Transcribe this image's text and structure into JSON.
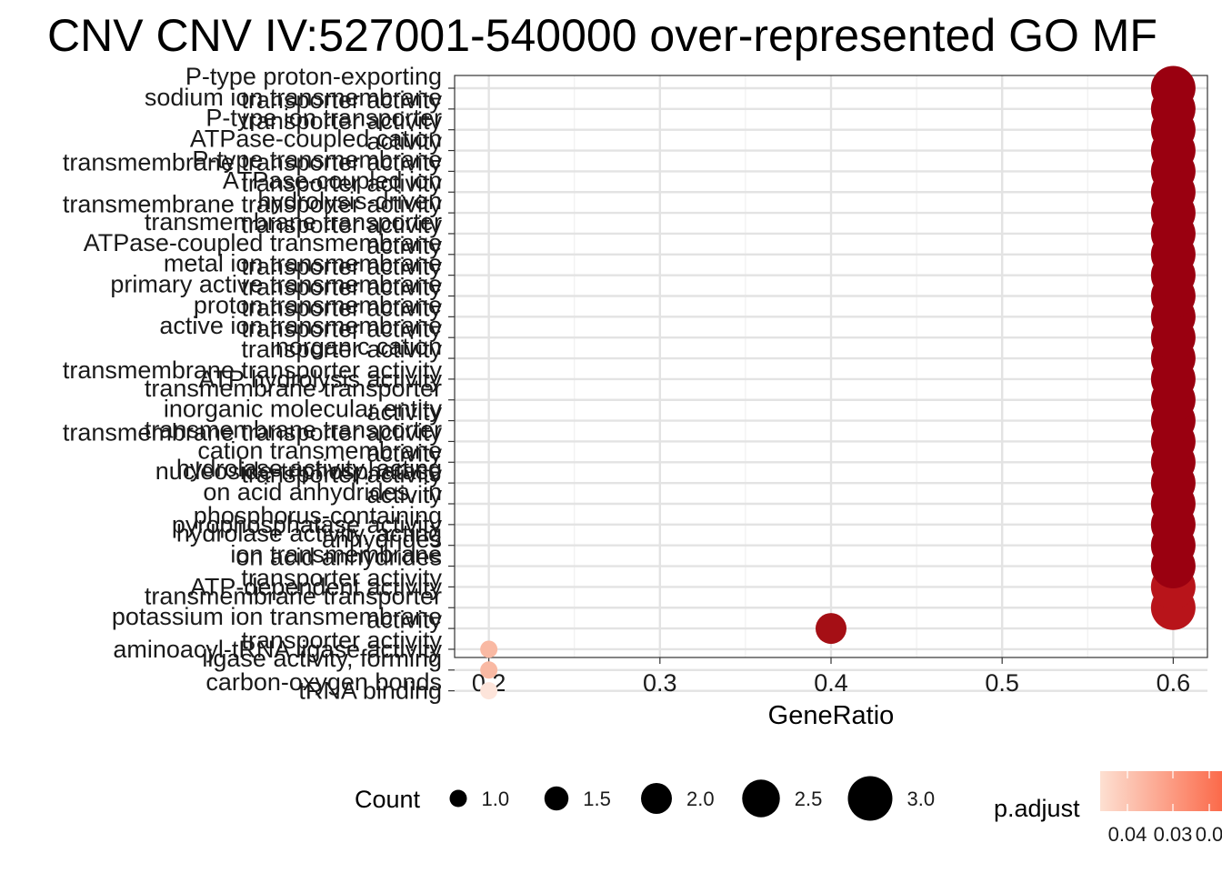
{
  "chart_data": {
    "type": "scatter",
    "title": "CNV CNV IV:527001-540000 over-represented GO MF",
    "xlabel": "GeneRatio",
    "ylabel": "",
    "xlim": [
      0.18,
      0.62
    ],
    "x_ticks": [
      "0.2",
      "0.3",
      "0.4",
      "0.5",
      "0.6"
    ],
    "grid": true,
    "categories": [
      {
        "label": [
          "P-type proton-exporting",
          "transporter activity"
        ],
        "x": 0.6,
        "count": 3,
        "p_adjust": 0.0015
      },
      {
        "label": [
          "sodium ion transmembrane",
          "transporter activity"
        ],
        "x": 0.6,
        "count": 3,
        "p_adjust": 0.0015
      },
      {
        "label": [
          "P-type ion transporter",
          "activity"
        ],
        "x": 0.6,
        "count": 3,
        "p_adjust": 0.0015
      },
      {
        "label": [
          "ATPase-coupled cation",
          "transmembrane transporter activity"
        ],
        "x": 0.6,
        "count": 3,
        "p_adjust": 0.0015
      },
      {
        "label": [
          "P-type transmembrane",
          "transporter activity"
        ],
        "x": 0.6,
        "count": 3,
        "p_adjust": 0.0015
      },
      {
        "label": [
          "ATPase-coupled ion",
          "transmembrane transporter activity"
        ],
        "x": 0.6,
        "count": 3,
        "p_adjust": 0.0015
      },
      {
        "label": [
          "hydrolysis-driven",
          "transporter activity"
        ],
        "x": 0.6,
        "count": 3,
        "p_adjust": 0.0015
      },
      {
        "label": [
          "transmembrane transporter",
          "activity"
        ],
        "x": 0.6,
        "count": 3,
        "p_adjust": 0.0015
      },
      {
        "label": [
          "ATPase-coupled transmembrane",
          "transporter activity"
        ],
        "x": 0.6,
        "count": 3,
        "p_adjust": 0.0015
      },
      {
        "label": [
          "metal ion transmembrane",
          "transporter activity"
        ],
        "x": 0.6,
        "count": 3,
        "p_adjust": 0.0015
      },
      {
        "label": [
          "primary active transmembrane",
          "transporter activity"
        ],
        "x": 0.6,
        "count": 3,
        "p_adjust": 0.0015
      },
      {
        "label": [
          "proton transmembrane",
          "transporter activity"
        ],
        "x": 0.6,
        "count": 3,
        "p_adjust": 0.0015
      },
      {
        "label": [
          "active ion transmembrane",
          "transporter activity"
        ],
        "x": 0.6,
        "count": 3,
        "p_adjust": 0.0015
      },
      {
        "label": [
          "inorganic cation",
          "transmembrane transporter activity"
        ],
        "x": 0.6,
        "count": 3,
        "p_adjust": 0.0015
      },
      {
        "label": [
          "ATP hydrolysis activity"
        ],
        "x": 0.6,
        "count": 3,
        "p_adjust": 0.0015
      },
      {
        "label": [
          "transmembrane transporter",
          "activity"
        ],
        "x": 0.6,
        "count": 3,
        "p_adjust": 0.0015
      },
      {
        "label": [
          "inorganic molecular entity",
          "transmembrane transporter activity"
        ],
        "x": 0.6,
        "count": 3,
        "p_adjust": 0.0015
      },
      {
        "label": [
          "transmembrane transporter",
          "activity"
        ],
        "x": 0.6,
        "count": 3,
        "p_adjust": 0.0015
      },
      {
        "label": [
          "cation transmembrane",
          "transporter activity"
        ],
        "x": 0.6,
        "count": 3,
        "p_adjust": 0.0015
      },
      {
        "label": [
          "nucleoside-triphosphatase",
          "activity"
        ],
        "x": 0.6,
        "count": 3,
        "p_adjust": 0.0015
      },
      {
        "label": [
          "hydrolase activity, acting",
          "on acid anhydrides, in",
          "phosphorus-containing",
          "anhydrides"
        ],
        "x": 0.6,
        "count": 3,
        "p_adjust": 0.0015
      },
      {
        "label": [
          "pyrophosphatase activity"
        ],
        "x": 0.6,
        "count": 3,
        "p_adjust": 0.0015
      },
      {
        "label": [
          "hydrolase activity, acting",
          "on acid anhydrides"
        ],
        "x": 0.6,
        "count": 3,
        "p_adjust": 0.0015
      },
      {
        "label": [
          "ion transmembrane",
          "transporter activity"
        ],
        "x": 0.6,
        "count": 3,
        "p_adjust": 0.0015
      },
      {
        "label": [
          "ATP-dependent activity"
        ],
        "x": 0.6,
        "count": 3,
        "p_adjust": 0.003
      },
      {
        "label": [
          "transmembrane transporter",
          "activity"
        ],
        "x": 0.6,
        "count": 3,
        "p_adjust": 0.004
      },
      {
        "label": [
          "potassium ion transmembrane",
          "transporter activity"
        ],
        "x": 0.4,
        "count": 2,
        "p_adjust": 0.002
      },
      {
        "label": [
          "aminoacyl-tRNA ligase activity"
        ],
        "x": 0.2,
        "count": 1,
        "p_adjust": 0.036
      },
      {
        "label": [
          "ligase activity, forming",
          "carbon-oxygen bonds"
        ],
        "x": 0.2,
        "count": 1,
        "p_adjust": 0.036
      },
      {
        "label": [
          "tRNA binding"
        ],
        "x": 0.2,
        "count": 1,
        "p_adjust": 0.048
      }
    ],
    "legend": {
      "size_title": "Count",
      "size_entries": [
        {
          "label": "1.0",
          "value": 1.0
        },
        {
          "label": "1.5",
          "value": 1.5
        },
        {
          "label": "2.0",
          "value": 2.0
        },
        {
          "label": "2.5",
          "value": 2.5
        },
        {
          "label": "3.0",
          "value": 3.0
        }
      ],
      "color_title": "p.adjust",
      "color_ticks": [
        "0.04",
        "0.03",
        "0.0"
      ],
      "color_low": "#fde0d2",
      "color_high": "#fb6a4a",
      "placement": "bottom"
    },
    "point_colors": {
      "very_low_p": "#9a0010",
      "low_p": "#a50f15",
      "mid_p": "#b8141a",
      "high_p": "#f9b9a3",
      "very_high_p": "#fde4da"
    }
  }
}
